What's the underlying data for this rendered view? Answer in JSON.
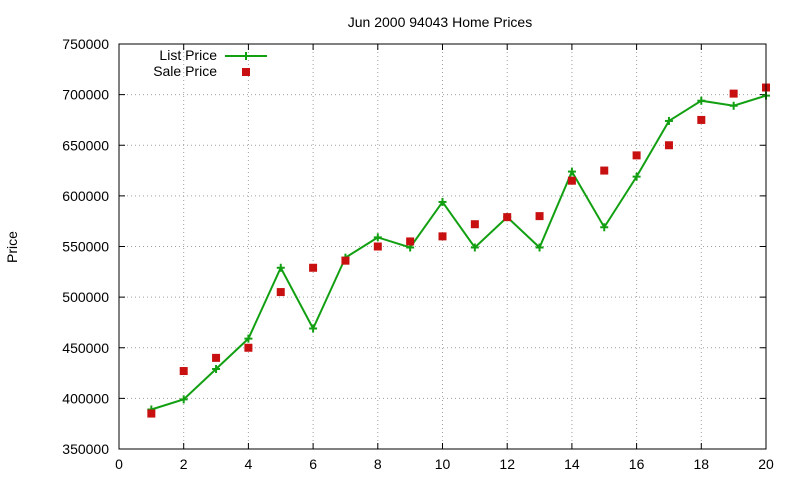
{
  "chart_data": {
    "type": "line",
    "title": "Jun 2000 94043 Home Prices",
    "xlabel": "",
    "ylabel": "Price",
    "xlim": [
      0,
      20
    ],
    "ylim": [
      350000,
      750000
    ],
    "xticks": [
      0,
      2,
      4,
      6,
      8,
      10,
      12,
      14,
      16,
      18,
      20
    ],
    "yticks": [
      350000,
      400000,
      450000,
      500000,
      550000,
      600000,
      650000,
      700000,
      750000
    ],
    "grid": true,
    "legend_position": "top-left",
    "series": [
      {
        "name": "List Price",
        "style": "line-plus",
        "color": "#12a012",
        "points": [
          [
            1,
            389000
          ],
          [
            2,
            399000
          ],
          [
            3,
            429000
          ],
          [
            4,
            459000
          ],
          [
            5,
            529000
          ],
          [
            6,
            469000
          ],
          [
            7,
            539000
          ],
          [
            8,
            559000
          ],
          [
            9,
            549000
          ],
          [
            10,
            594000
          ],
          [
            11,
            549000
          ],
          [
            12,
            579000
          ],
          [
            13,
            549000
          ],
          [
            14,
            624000
          ],
          [
            15,
            569000
          ],
          [
            16,
            619000
          ],
          [
            17,
            674000
          ],
          [
            18,
            694000
          ],
          [
            19,
            689000
          ],
          [
            20,
            699000
          ]
        ]
      },
      {
        "name": "Sale Price",
        "style": "square-points",
        "color": "#c81010",
        "points": [
          [
            1,
            385000
          ],
          [
            2,
            427000
          ],
          [
            3,
            440000
          ],
          [
            4,
            450000
          ],
          [
            5,
            505000
          ],
          [
            6,
            529000
          ],
          [
            7,
            536000
          ],
          [
            8,
            550000
          ],
          [
            9,
            555000
          ],
          [
            10,
            560000
          ],
          [
            11,
            572000
          ],
          [
            12,
            579000
          ],
          [
            13,
            580000
          ],
          [
            14,
            615000
          ],
          [
            15,
            625000
          ],
          [
            16,
            640000
          ],
          [
            17,
            650000
          ],
          [
            18,
            675000
          ],
          [
            19,
            701000
          ],
          [
            20,
            707000
          ]
        ]
      }
    ]
  }
}
